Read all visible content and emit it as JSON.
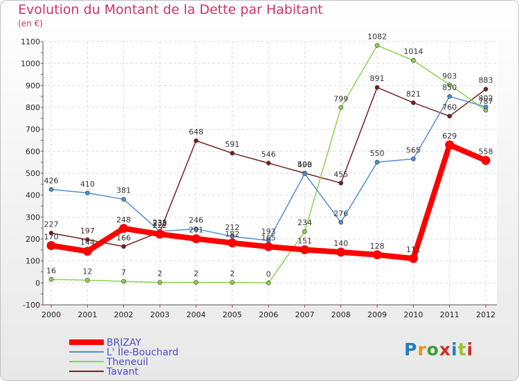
{
  "title": "Evolution du Montant de la Dette par Habitant",
  "unit_label": "(en €)",
  "logo": {
    "text": "Proxiti",
    "letter_colors": [
      "#1f7fc0",
      "#f28c1a",
      "#3a9a3a",
      "#d02a2a",
      "#1f7fc0",
      "#9fc02a",
      "#d02a2a"
    ]
  },
  "chart_data": {
    "type": "line",
    "title": "Evolution du Montant de la Dette par Habitant",
    "ylabel": "(en €)",
    "xlabel": "",
    "categories": [
      "2000",
      "2001",
      "2002",
      "2003",
      "2004",
      "2005",
      "2006",
      "2007",
      "2008",
      "2009",
      "2010",
      "2011",
      "2012"
    ],
    "ylim": [
      -100,
      1100
    ],
    "yticks": [
      -100,
      0,
      100,
      200,
      300,
      400,
      500,
      600,
      700,
      800,
      900,
      1000,
      1100
    ],
    "grid": true,
    "legend_position": "bottom-left",
    "series": [
      {
        "name": "BRIZAY",
        "color": "#ff0000",
        "values": [
          170,
          144,
          248,
          222,
          201,
          182,
          165,
          151,
          140,
          128,
          111,
          629,
          558
        ],
        "labels": [
          "170",
          "144",
          "248",
          "222",
          "201",
          "182",
          "165",
          "151",
          "140",
          "128",
          "111",
          "629",
          "558"
        ]
      },
      {
        "name": "L' Île-Bouchard",
        "color": "#4f8fcf",
        "values": [
          426,
          410,
          381,
          235,
          246,
          212,
          193,
          498,
          276,
          550,
          565,
          850,
          802
        ],
        "labels": [
          "426",
          "410",
          "381",
          "235",
          "246",
          "212",
          "193",
          "498",
          "276",
          "550",
          "565",
          "850",
          "802"
        ]
      },
      {
        "name": "Theneuil",
        "color": "#88d44c",
        "values": [
          16,
          12,
          7,
          2,
          2,
          2,
          0,
          234,
          799,
          1082,
          1014,
          903,
          787
        ],
        "labels": [
          "16",
          "12",
          "7",
          "2",
          "2",
          "2",
          "0",
          "234",
          "799",
          "1082",
          "1014",
          "903",
          "787"
        ]
      },
      {
        "name": "Tavant",
        "color": "#7a1f1f",
        "values": [
          227,
          197,
          166,
          232,
          648,
          591,
          546,
          500,
          455,
          891,
          821,
          760,
          883
        ],
        "labels": [
          "227",
          "197",
          "166",
          "232",
          "648",
          "591",
          "546",
          "500",
          "455",
          "891",
          "821",
          "760",
          "883"
        ]
      }
    ]
  }
}
